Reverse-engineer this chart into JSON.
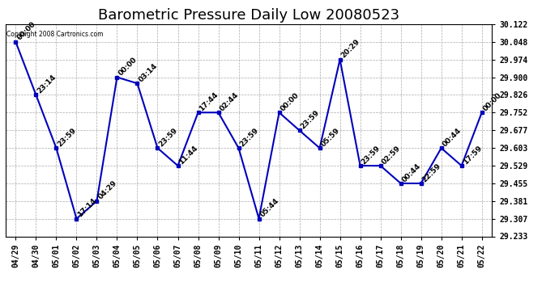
{
  "title": "Barometric Pressure Daily Low 20080523",
  "copyright": "Copyright 2008 Cartronics.com",
  "x_labels": [
    "04/29",
    "04/30",
    "05/01",
    "05/02",
    "05/03",
    "05/04",
    "05/05",
    "05/06",
    "05/07",
    "05/08",
    "05/09",
    "05/10",
    "05/11",
    "05/12",
    "05/13",
    "05/14",
    "05/15",
    "05/16",
    "05/17",
    "05/18",
    "05/19",
    "05/20",
    "05/21",
    "05/22"
  ],
  "y_values": [
    30.048,
    29.826,
    29.603,
    29.307,
    29.381,
    29.9,
    29.874,
    29.603,
    29.529,
    29.752,
    29.752,
    29.603,
    29.307,
    29.752,
    29.677,
    29.603,
    29.974,
    29.529,
    29.529,
    29.455,
    29.455,
    29.603,
    29.529,
    29.752
  ],
  "point_labels": [
    "00:00",
    "23:14",
    "23:59",
    "17:14",
    "04:29",
    "00:00",
    "03:14",
    "23:59",
    "11:44",
    "17:44",
    "02:44",
    "23:59",
    "05:44",
    "00:00",
    "23:59",
    "05:59",
    "20:29",
    "23:59",
    "02:59",
    "00:44",
    "22:59",
    "00:44",
    "17:59",
    "00:00"
  ],
  "y_min": 29.233,
  "y_max": 30.122,
  "y_ticks": [
    29.233,
    29.307,
    29.381,
    29.455,
    29.529,
    29.603,
    29.677,
    29.752,
    29.826,
    29.9,
    29.974,
    30.048,
    30.122
  ],
  "line_color": "#0000bb",
  "marker_color": "#0000bb",
  "background_color": "#ffffff",
  "grid_color": "#aaaaaa",
  "title_fontsize": 13,
  "tick_fontsize": 7,
  "point_label_fontsize": 6.5
}
